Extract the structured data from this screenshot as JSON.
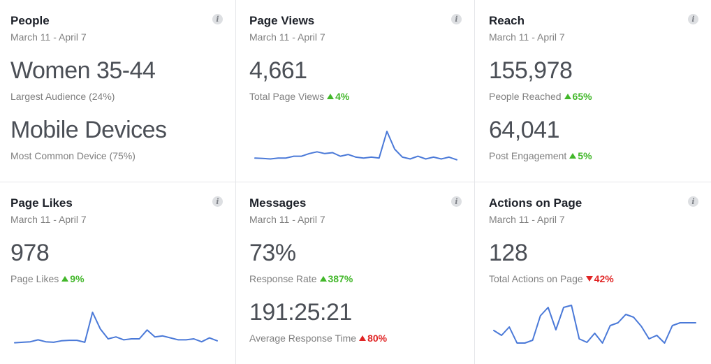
{
  "cards": {
    "people": {
      "title": "People",
      "date": "March 11 - April 7",
      "metric1": "Women 35-44",
      "sub1": "Largest Audience (24%)",
      "metric2": "Mobile Devices",
      "sub2": "Most Common Device (75%)"
    },
    "page_views": {
      "title": "Page Views",
      "date": "March 11 - April 7",
      "metric": "4,661",
      "sub": "Total Page Views",
      "delta": "4%",
      "trend": [
        3,
        2.5,
        2,
        3,
        3,
        5,
        5,
        8,
        10,
        8,
        9,
        5,
        7,
        4,
        3,
        4,
        3,
        33,
        13,
        4,
        2,
        5,
        2,
        4,
        2,
        4,
        1
      ]
    },
    "reach": {
      "title": "Reach",
      "date": "March 11 - April 7",
      "metric1": "155,978",
      "sub1": "People Reached",
      "delta1": "65%",
      "metric2": "64,041",
      "sub2": "Post Engagement",
      "delta2": "5%"
    },
    "page_likes": {
      "title": "Page Likes",
      "date": "March 11 - April 7",
      "metric": "978",
      "sub": "Page Likes",
      "delta": "9%",
      "trend": [
        1,
        1.5,
        2,
        4,
        2,
        1.5,
        3,
        3.5,
        3.5,
        1.5,
        32,
        15,
        5,
        7,
        4,
        5,
        5,
        14,
        7,
        8,
        6,
        4,
        4,
        5,
        2,
        6,
        3
      ]
    },
    "messages": {
      "title": "Messages",
      "date": "March 11 - April 7",
      "metric1": "73%",
      "sub1": "Response Rate",
      "delta1": "387%",
      "metric2": "191:25:21",
      "sub2": "Average Response Time",
      "delta2": "80%"
    },
    "actions": {
      "title": "Actions on Page",
      "date": "March 11 - April 7",
      "metric": "128",
      "sub": "Total Actions on Page",
      "delta": "42%",
      "trend": [
        19,
        12,
        24,
        1,
        1,
        5,
        40,
        52,
        20,
        52,
        55,
        7,
        2,
        15,
        1,
        26,
        30,
        42,
        38,
        25,
        7,
        12,
        1,
        26,
        30,
        30,
        30
      ]
    }
  },
  "colors": {
    "line": "#4a79d8",
    "up": "#42b72a",
    "down": "#e02424"
  }
}
